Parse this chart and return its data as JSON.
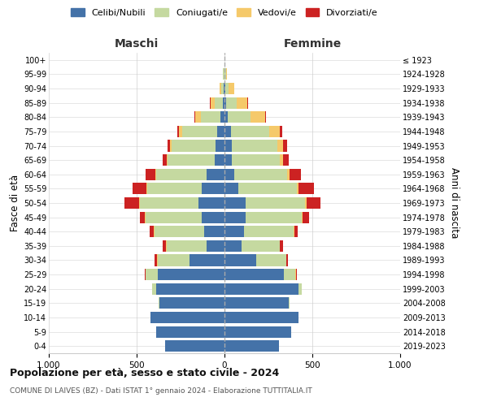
{
  "age_groups": [
    "0-4",
    "5-9",
    "10-14",
    "15-19",
    "20-24",
    "25-29",
    "30-34",
    "35-39",
    "40-44",
    "45-49",
    "50-54",
    "55-59",
    "60-64",
    "65-69",
    "70-74",
    "75-79",
    "80-84",
    "85-89",
    "90-94",
    "95-99",
    "100+"
  ],
  "birth_years": [
    "2019-2023",
    "2014-2018",
    "2009-2013",
    "2004-2008",
    "1999-2003",
    "1994-1998",
    "1989-1993",
    "1984-1988",
    "1979-1983",
    "1974-1978",
    "1969-1973",
    "1964-1968",
    "1959-1963",
    "1954-1958",
    "1949-1953",
    "1944-1948",
    "1939-1943",
    "1934-1938",
    "1929-1933",
    "1924-1928",
    "≤ 1923"
  ],
  "maschi": {
    "celibi": [
      340,
      390,
      420,
      370,
      390,
      380,
      200,
      100,
      115,
      130,
      150,
      130,
      100,
      55,
      50,
      40,
      25,
      10,
      5,
      2,
      0
    ],
    "coniugati": [
      0,
      1,
      2,
      5,
      20,
      70,
      180,
      230,
      285,
      320,
      330,
      310,
      290,
      270,
      250,
      200,
      110,
      45,
      15,
      5,
      0
    ],
    "vedovi": [
      0,
      0,
      0,
      0,
      1,
      1,
      2,
      2,
      2,
      3,
      5,
      5,
      5,
      5,
      10,
      20,
      30,
      25,
      10,
      3,
      0
    ],
    "divorziati": [
      0,
      0,
      0,
      0,
      2,
      5,
      15,
      20,
      25,
      30,
      85,
      80,
      55,
      20,
      15,
      10,
      5,
      5,
      0,
      0,
      0
    ]
  },
  "femmine": {
    "nubili": [
      310,
      380,
      420,
      365,
      420,
      340,
      180,
      95,
      110,
      120,
      120,
      80,
      55,
      40,
      40,
      35,
      20,
      10,
      5,
      2,
      0
    ],
    "coniugate": [
      0,
      1,
      2,
      5,
      18,
      65,
      170,
      220,
      285,
      320,
      340,
      330,
      300,
      275,
      260,
      220,
      130,
      60,
      20,
      5,
      0
    ],
    "vedove": [
      0,
      0,
      0,
      0,
      1,
      1,
      2,
      2,
      3,
      5,
      8,
      10,
      15,
      20,
      35,
      60,
      80,
      60,
      30,
      8,
      1
    ],
    "divorziate": [
      0,
      0,
      0,
      0,
      2,
      5,
      10,
      15,
      20,
      35,
      80,
      90,
      65,
      30,
      20,
      15,
      8,
      5,
      2,
      0,
      0
    ]
  },
  "colors": {
    "celibi_nubili": "#4472a8",
    "coniugati": "#c5d9a0",
    "vedovi": "#f5c96a",
    "divorziati": "#cc2222"
  },
  "xlim": 1000,
  "title": "Popolazione per età, sesso e stato civile - 2024",
  "subtitle": "COMUNE DI LAIVES (BZ) - Dati ISTAT 1° gennaio 2024 - Elaborazione TUTTITALIA.IT",
  "maschi_label": "Maschi",
  "femmine_label": "Femmine",
  "ylabel_left": "Fasce di età",
  "ylabel_right": "Anni di nascita",
  "legend_labels": [
    "Celibi/Nubili",
    "Coniugati/e",
    "Vedovi/e",
    "Divorziati/e"
  ],
  "background_color": "#ffffff",
  "grid_color": "#cccccc"
}
